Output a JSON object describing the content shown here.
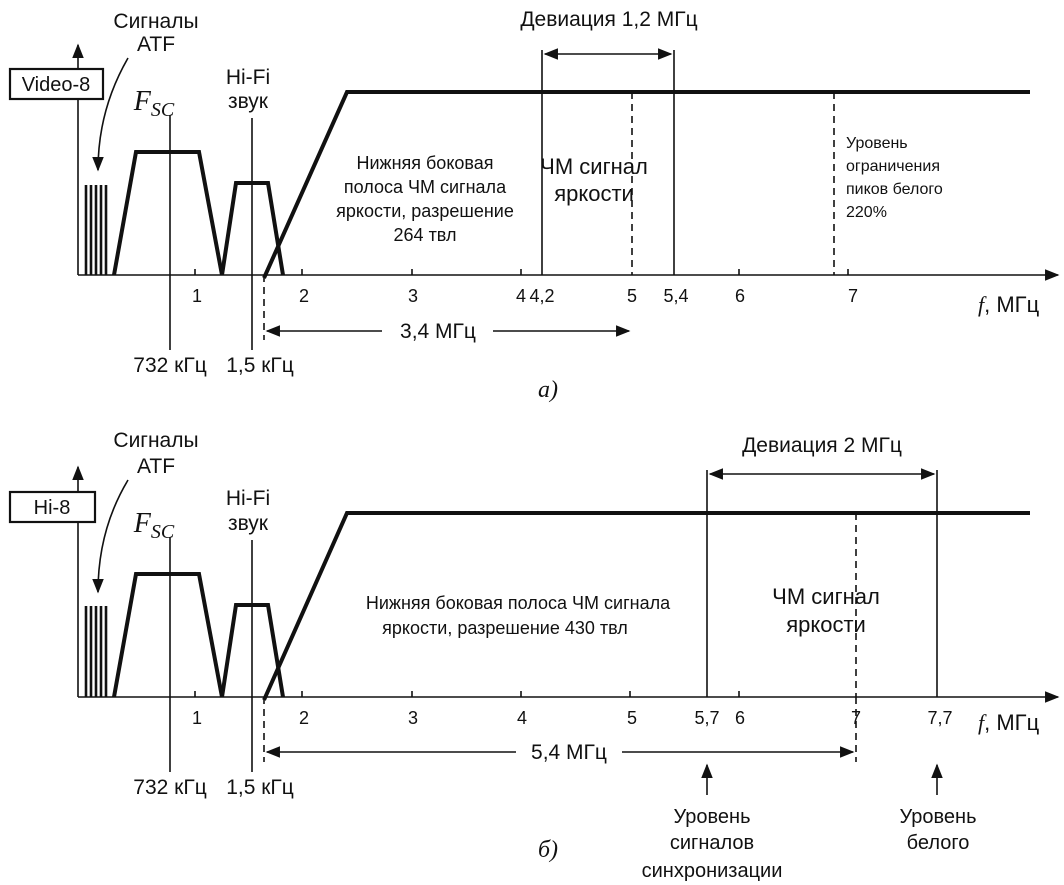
{
  "top": {
    "atf_line1": "Сигналы",
    "atf_line2": "ATF",
    "format_label": "Video-8",
    "fsc_main": "F",
    "fsc_sub": "SC",
    "hifi_line1": "Hi-Fi",
    "hifi_line2": "звук",
    "deviation": "Девиация 1,2 МГц",
    "sideband_lines": [
      "Нижняя боковая",
      "полоса ЧМ сигнала",
      "яркости, разрешение",
      "264 твл"
    ],
    "fm_lines": [
      "ЧМ сигнал",
      "яркости"
    ],
    "peak_lines": [
      "Уровень",
      "ограничения",
      "пиков белого",
      "220%"
    ],
    "ticks": [
      "1",
      "2",
      "3",
      "4",
      "4,2",
      "5",
      "5,4",
      "6",
      "7"
    ],
    "f_label": "f",
    "unit_label": ", МГц",
    "span_label": "3,4 МГц",
    "label_732": "732 кГц",
    "label_15": "1,5 кГц",
    "caption": "а)"
  },
  "bottom": {
    "atf_line1": "Сигналы",
    "atf_line2": "ATF",
    "format_label": "Hi-8",
    "fsc_main": "F",
    "fsc_sub": "SC",
    "hifi_line1": "Hi-Fi",
    "hifi_line2": "звук",
    "deviation": "Девиация 2 МГц",
    "sideband_lines": [
      "Нижняя боковая полоса ЧМ сигнала",
      "яркости, разрешение 430 твл"
    ],
    "fm_lines": [
      "ЧМ сигнал",
      "яркости"
    ],
    "ticks": [
      "1",
      "2",
      "3",
      "4",
      "5",
      "5,7",
      "6",
      "7",
      "7,7"
    ],
    "f_label": "f",
    "unit_label": ", МГц",
    "span_label": "5,4 МГц",
    "label_732": "732 кГц",
    "label_15": "1,5 кГц",
    "sync_lines": [
      "Уровень",
      "сигналов",
      "синхронизации"
    ],
    "white_lines": [
      "Уровень",
      "белого"
    ],
    "caption": "б)"
  }
}
